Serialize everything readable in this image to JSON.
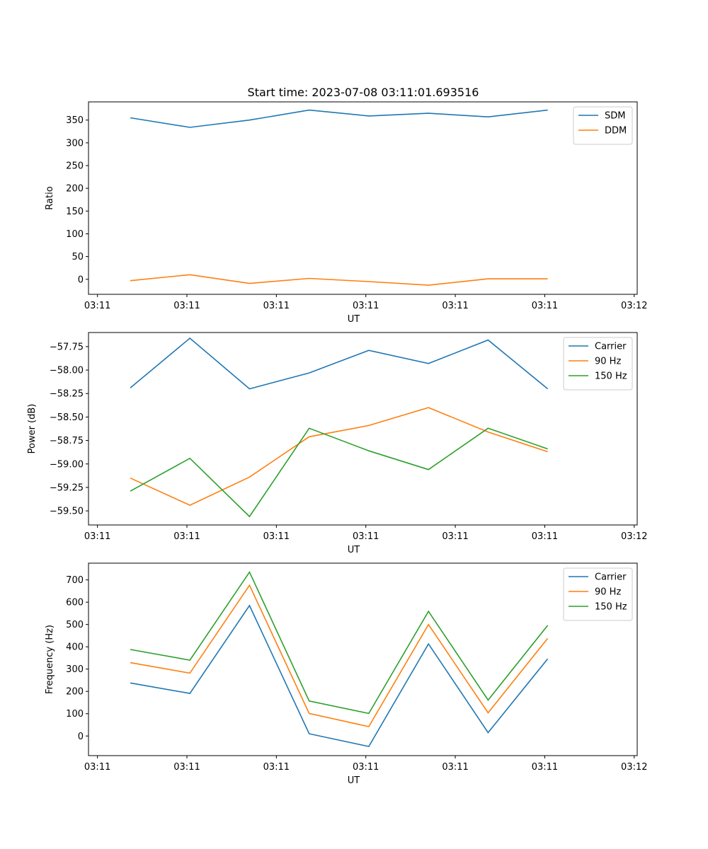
{
  "figure_title": "Start time: 2023-07-08 03:11:01.693516",
  "colors": {
    "blue": "#1f77b4",
    "orange": "#ff7f0e",
    "green": "#2ca02c"
  },
  "chart_data": [
    {
      "type": "line",
      "title": "Start time: 2023-07-08 03:11:01.693516",
      "xlabel": "UT",
      "ylabel": "Ratio",
      "x": [
        0,
        1,
        2,
        3,
        4,
        5,
        6,
        7
      ],
      "xlim": [
        -0.7,
        8.5
      ],
      "xticks": [
        -0.55,
        0.95,
        2.45,
        3.95,
        5.45,
        6.95,
        8.45
      ],
      "xtick_labels": [
        "03:11",
        "03:11",
        "03:11",
        "03:11",
        "03:11",
        "03:11",
        "03:12"
      ],
      "ylim": [
        -33,
        390
      ],
      "yticks": [
        0,
        50,
        100,
        150,
        200,
        250,
        300,
        350
      ],
      "ytick_labels": [
        "0",
        "50",
        "100",
        "150",
        "200",
        "250",
        "300",
        "350"
      ],
      "legend_position": "top-right",
      "series": [
        {
          "name": "SDM",
          "color": "#1f77b4",
          "values": [
            355,
            334,
            350,
            372,
            359,
            365,
            357,
            372
          ]
        },
        {
          "name": "DDM",
          "color": "#ff7f0e",
          "values": [
            -3,
            10,
            -9,
            2,
            -5,
            -13,
            1,
            1
          ]
        }
      ]
    },
    {
      "type": "line",
      "title": "",
      "xlabel": "UT",
      "ylabel": "Power (dB)",
      "x": [
        0,
        1,
        2,
        3,
        4,
        5,
        6,
        7
      ],
      "xlim": [
        -0.7,
        8.5
      ],
      "xticks": [
        -0.55,
        0.95,
        2.45,
        3.95,
        5.45,
        6.95,
        8.45
      ],
      "xtick_labels": [
        "03:11",
        "03:11",
        "03:11",
        "03:11",
        "03:11",
        "03:11",
        "03:12"
      ],
      "ylim": [
        -59.65,
        -57.6
      ],
      "yticks": [
        -59.5,
        -59.25,
        -59.0,
        -58.75,
        -58.5,
        -58.25,
        -58.0,
        -57.75
      ],
      "ytick_labels": [
        "−59.50",
        "−59.25",
        "−59.00",
        "−58.75",
        "−58.50",
        "−58.25",
        "−58.00",
        "−57.75"
      ],
      "legend_position": "top-right",
      "series": [
        {
          "name": "Carrier",
          "color": "#1f77b4",
          "values": [
            -58.19,
            -57.66,
            -58.2,
            -58.03,
            -57.79,
            -57.93,
            -57.68,
            -58.2
          ]
        },
        {
          "name": "90 Hz",
          "color": "#ff7f0e",
          "values": [
            -59.15,
            -59.44,
            -59.14,
            -58.71,
            -58.59,
            -58.4,
            -58.66,
            -58.87
          ]
        },
        {
          "name": "150 Hz",
          "color": "#2ca02c",
          "values": [
            -59.29,
            -58.94,
            -59.56,
            -58.62,
            -58.86,
            -59.06,
            -58.62,
            -58.84
          ]
        }
      ]
    },
    {
      "type": "line",
      "title": "",
      "xlabel": "UT",
      "ylabel": "Frequency (Hz)",
      "x": [
        0,
        1,
        2,
        3,
        4,
        5,
        6,
        7
      ],
      "xlim": [
        -0.7,
        8.5
      ],
      "xticks": [
        -0.55,
        0.95,
        2.45,
        3.95,
        5.45,
        6.95,
        8.45
      ],
      "xtick_labels": [
        "03:11",
        "03:11",
        "03:11",
        "03:11",
        "03:11",
        "03:11",
        "03:12"
      ],
      "ylim": [
        -88,
        775
      ],
      "yticks": [
        0,
        100,
        200,
        300,
        400,
        500,
        600,
        700
      ],
      "ytick_labels": [
        "0",
        "100",
        "200",
        "300",
        "400",
        "500",
        "600",
        "700"
      ],
      "legend_position": "top-right",
      "series": [
        {
          "name": "Carrier",
          "color": "#1f77b4",
          "values": [
            238,
            191,
            585,
            10,
            -47,
            413,
            15,
            346
          ]
        },
        {
          "name": "90 Hz",
          "color": "#ff7f0e",
          "values": [
            329,
            282,
            676,
            101,
            42,
            500,
            104,
            438
          ]
        },
        {
          "name": "150 Hz",
          "color": "#2ca02c",
          "values": [
            388,
            340,
            735,
            157,
            101,
            559,
            161,
            496
          ]
        }
      ]
    }
  ]
}
